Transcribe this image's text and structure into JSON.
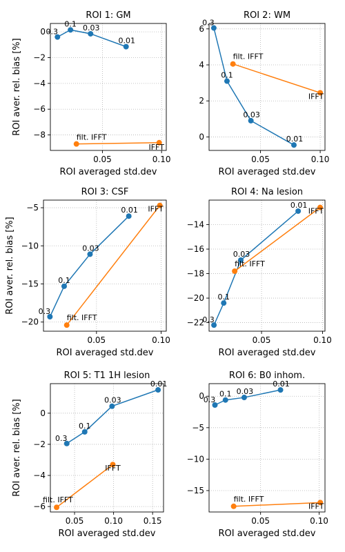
{
  "colors": {
    "series": "#1f77b4",
    "reference": "#ff7f0e",
    "grid": "#b0b0b0",
    "axes": "#000000"
  },
  "chart_data": [
    {
      "type": "scatter",
      "title": "ROI 1: GM",
      "xlabel": "ROI averaged std.dev",
      "ylabel": "ROI aver. rel. bias [%]",
      "xlim": [
        0.006,
        0.104
      ],
      "ylim": [
        -9.2,
        0.65
      ],
      "xticks": [
        0.05,
        0.1
      ],
      "xticklabels": [
        "0.05",
        "0.10"
      ],
      "yticks": [
        0,
        -2,
        -4,
        -6,
        -8
      ],
      "yticklabels": [
        "0",
        "−2",
        "−4",
        "−6",
        "−8"
      ],
      "grid": true,
      "series": [
        {
          "x": [
            0.012,
            0.023,
            0.04,
            0.07
          ],
          "y": [
            -0.4,
            0.15,
            -0.15,
            -1.15
          ],
          "labels": [
            "0.3",
            "0.1",
            "0.03",
            "0.01"
          ]
        },
        {
          "x": [
            0.028,
            0.098
          ],
          "y": [
            -8.7,
            -8.6
          ],
          "labels": [
            "filt. IFFT",
            "IFFT"
          ]
        }
      ]
    },
    {
      "type": "scatter",
      "title": "ROI 2: WM",
      "xlabel": "ROI averaged std.dev",
      "ylabel": "",
      "xlim": [
        0.007,
        0.104
      ],
      "ylim": [
        -0.75,
        6.3
      ],
      "xticks": [
        0.05,
        0.1
      ],
      "xticklabels": [
        "0.05",
        "0.10"
      ],
      "yticks": [
        0,
        2,
        4,
        6
      ],
      "yticklabels": [
        "0",
        "2",
        "4",
        "6"
      ],
      "grid": true,
      "series": [
        {
          "x": [
            0.011,
            0.022,
            0.042,
            0.078
          ],
          "y": [
            6.05,
            3.1,
            0.9,
            -0.45
          ],
          "labels": [
            "0.3",
            "0.1",
            "0.03",
            "0.01"
          ]
        },
        {
          "x": [
            0.027,
            0.1
          ],
          "y": [
            4.05,
            2.45
          ],
          "labels": [
            "filt. IFFT",
            "IFFT"
          ]
        }
      ]
    },
    {
      "type": "scatter",
      "title": "ROI 3: CSF",
      "xlabel": "ROI averaged std.dev",
      "ylabel": "ROI aver. rel. bias [%]",
      "xlim": [
        0.009,
        0.104
      ],
      "ylim": [
        -21.2,
        -4.0
      ],
      "xticks": [
        0.05,
        0.1
      ],
      "xticklabels": [
        "0.05",
        "0.10"
      ],
      "yticks": [
        -5,
        -10,
        -15,
        -20
      ],
      "yticklabels": [
        "−5",
        "−10",
        "−15",
        "−20"
      ],
      "grid": true,
      "series": [
        {
          "x": [
            0.014,
            0.025,
            0.045,
            0.075
          ],
          "y": [
            -19.3,
            -15.3,
            -11.1,
            -6.1
          ],
          "labels": [
            "0.3",
            "0.1",
            "0.03",
            "0.01"
          ]
        },
        {
          "x": [
            0.027,
            0.099
          ],
          "y": [
            -20.4,
            -4.7
          ],
          "labels": [
            "filt. IFFT",
            "IFFT"
          ]
        }
      ]
    },
    {
      "type": "scatter",
      "title": "ROI 4: Na lesion",
      "xlabel": "ROI averaged std.dev",
      "ylabel": "",
      "xlim": [
        0.007,
        0.102
      ],
      "ylim": [
        -22.7,
        -12.0
      ],
      "xticks": [
        0.05,
        0.1
      ],
      "xticklabels": [
        "0.05",
        "0.10"
      ],
      "yticks": [
        -14,
        -16,
        -18,
        -20,
        -22
      ],
      "yticklabels": [
        "−14",
        "−16",
        "−18",
        "−20",
        "−22"
      ],
      "grid": true,
      "series": [
        {
          "x": [
            0.011,
            0.019,
            0.033,
            0.08
          ],
          "y": [
            -22.2,
            -20.4,
            -16.9,
            -12.9
          ],
          "labels": [
            "0.3",
            "0.1",
            "0.03",
            "0.01"
          ]
        },
        {
          "x": [
            0.028,
            0.098
          ],
          "y": [
            -17.8,
            -12.6
          ],
          "labels": [
            "filt. IFFT",
            "IFFT"
          ]
        }
      ]
    },
    {
      "type": "scatter",
      "title": "ROI 5: T1 1H lesion",
      "xlabel": "ROI averaged std.dev",
      "ylabel": "ROI aver. rel. bias [%]",
      "xlim": [
        0.019,
        0.164
      ],
      "ylim": [
        -6.35,
        1.9
      ],
      "xticks": [
        0.05,
        0.1,
        0.15
      ],
      "xticklabels": [
        "0.05",
        "0.10",
        "0.15"
      ],
      "yticks": [
        0,
        -2,
        -4,
        -6
      ],
      "yticklabels": [
        "0",
        "−2",
        "−4",
        "−6"
      ],
      "grid": true,
      "series": [
        {
          "x": [
            0.04,
            0.063,
            0.098,
            0.157
          ],
          "y": [
            -1.95,
            -1.2,
            0.45,
            1.5
          ],
          "labels": [
            "0.3",
            "0.1",
            "0.03",
            "0.01"
          ]
        },
        {
          "x": [
            0.027,
            0.099
          ],
          "y": [
            -6.05,
            -3.3
          ],
          "labels": [
            "filt. IFFT",
            "IFFT"
          ]
        }
      ]
    },
    {
      "type": "scatter",
      "title": "ROI 6: B0 inhom.",
      "xlabel": "ROI averaged std.dev",
      "ylabel": "",
      "xlim": [
        0.006,
        0.105
      ],
      "ylim": [
        -18.4,
        2.0
      ],
      "xticks": [
        0.05,
        0.1
      ],
      "xticklabels": [
        "0.05",
        "0.10"
      ],
      "yticks": [
        0,
        -5,
        -10,
        -15
      ],
      "yticklabels": [
        "0",
        "−5",
        "−10",
        "−15"
      ],
      "grid": true,
      "series": [
        {
          "x": [
            0.011,
            0.02,
            0.036,
            0.067
          ],
          "y": [
            -1.4,
            -0.6,
            -0.2,
            1.0
          ],
          "labels": [
            "0.3",
            "0.1",
            "0.03",
            "0.01"
          ]
        },
        {
          "x": [
            0.027,
            0.101
          ],
          "y": [
            -17.5,
            -16.9
          ],
          "labels": [
            "filt. IFFT",
            "IFFT"
          ]
        }
      ]
    }
  ]
}
